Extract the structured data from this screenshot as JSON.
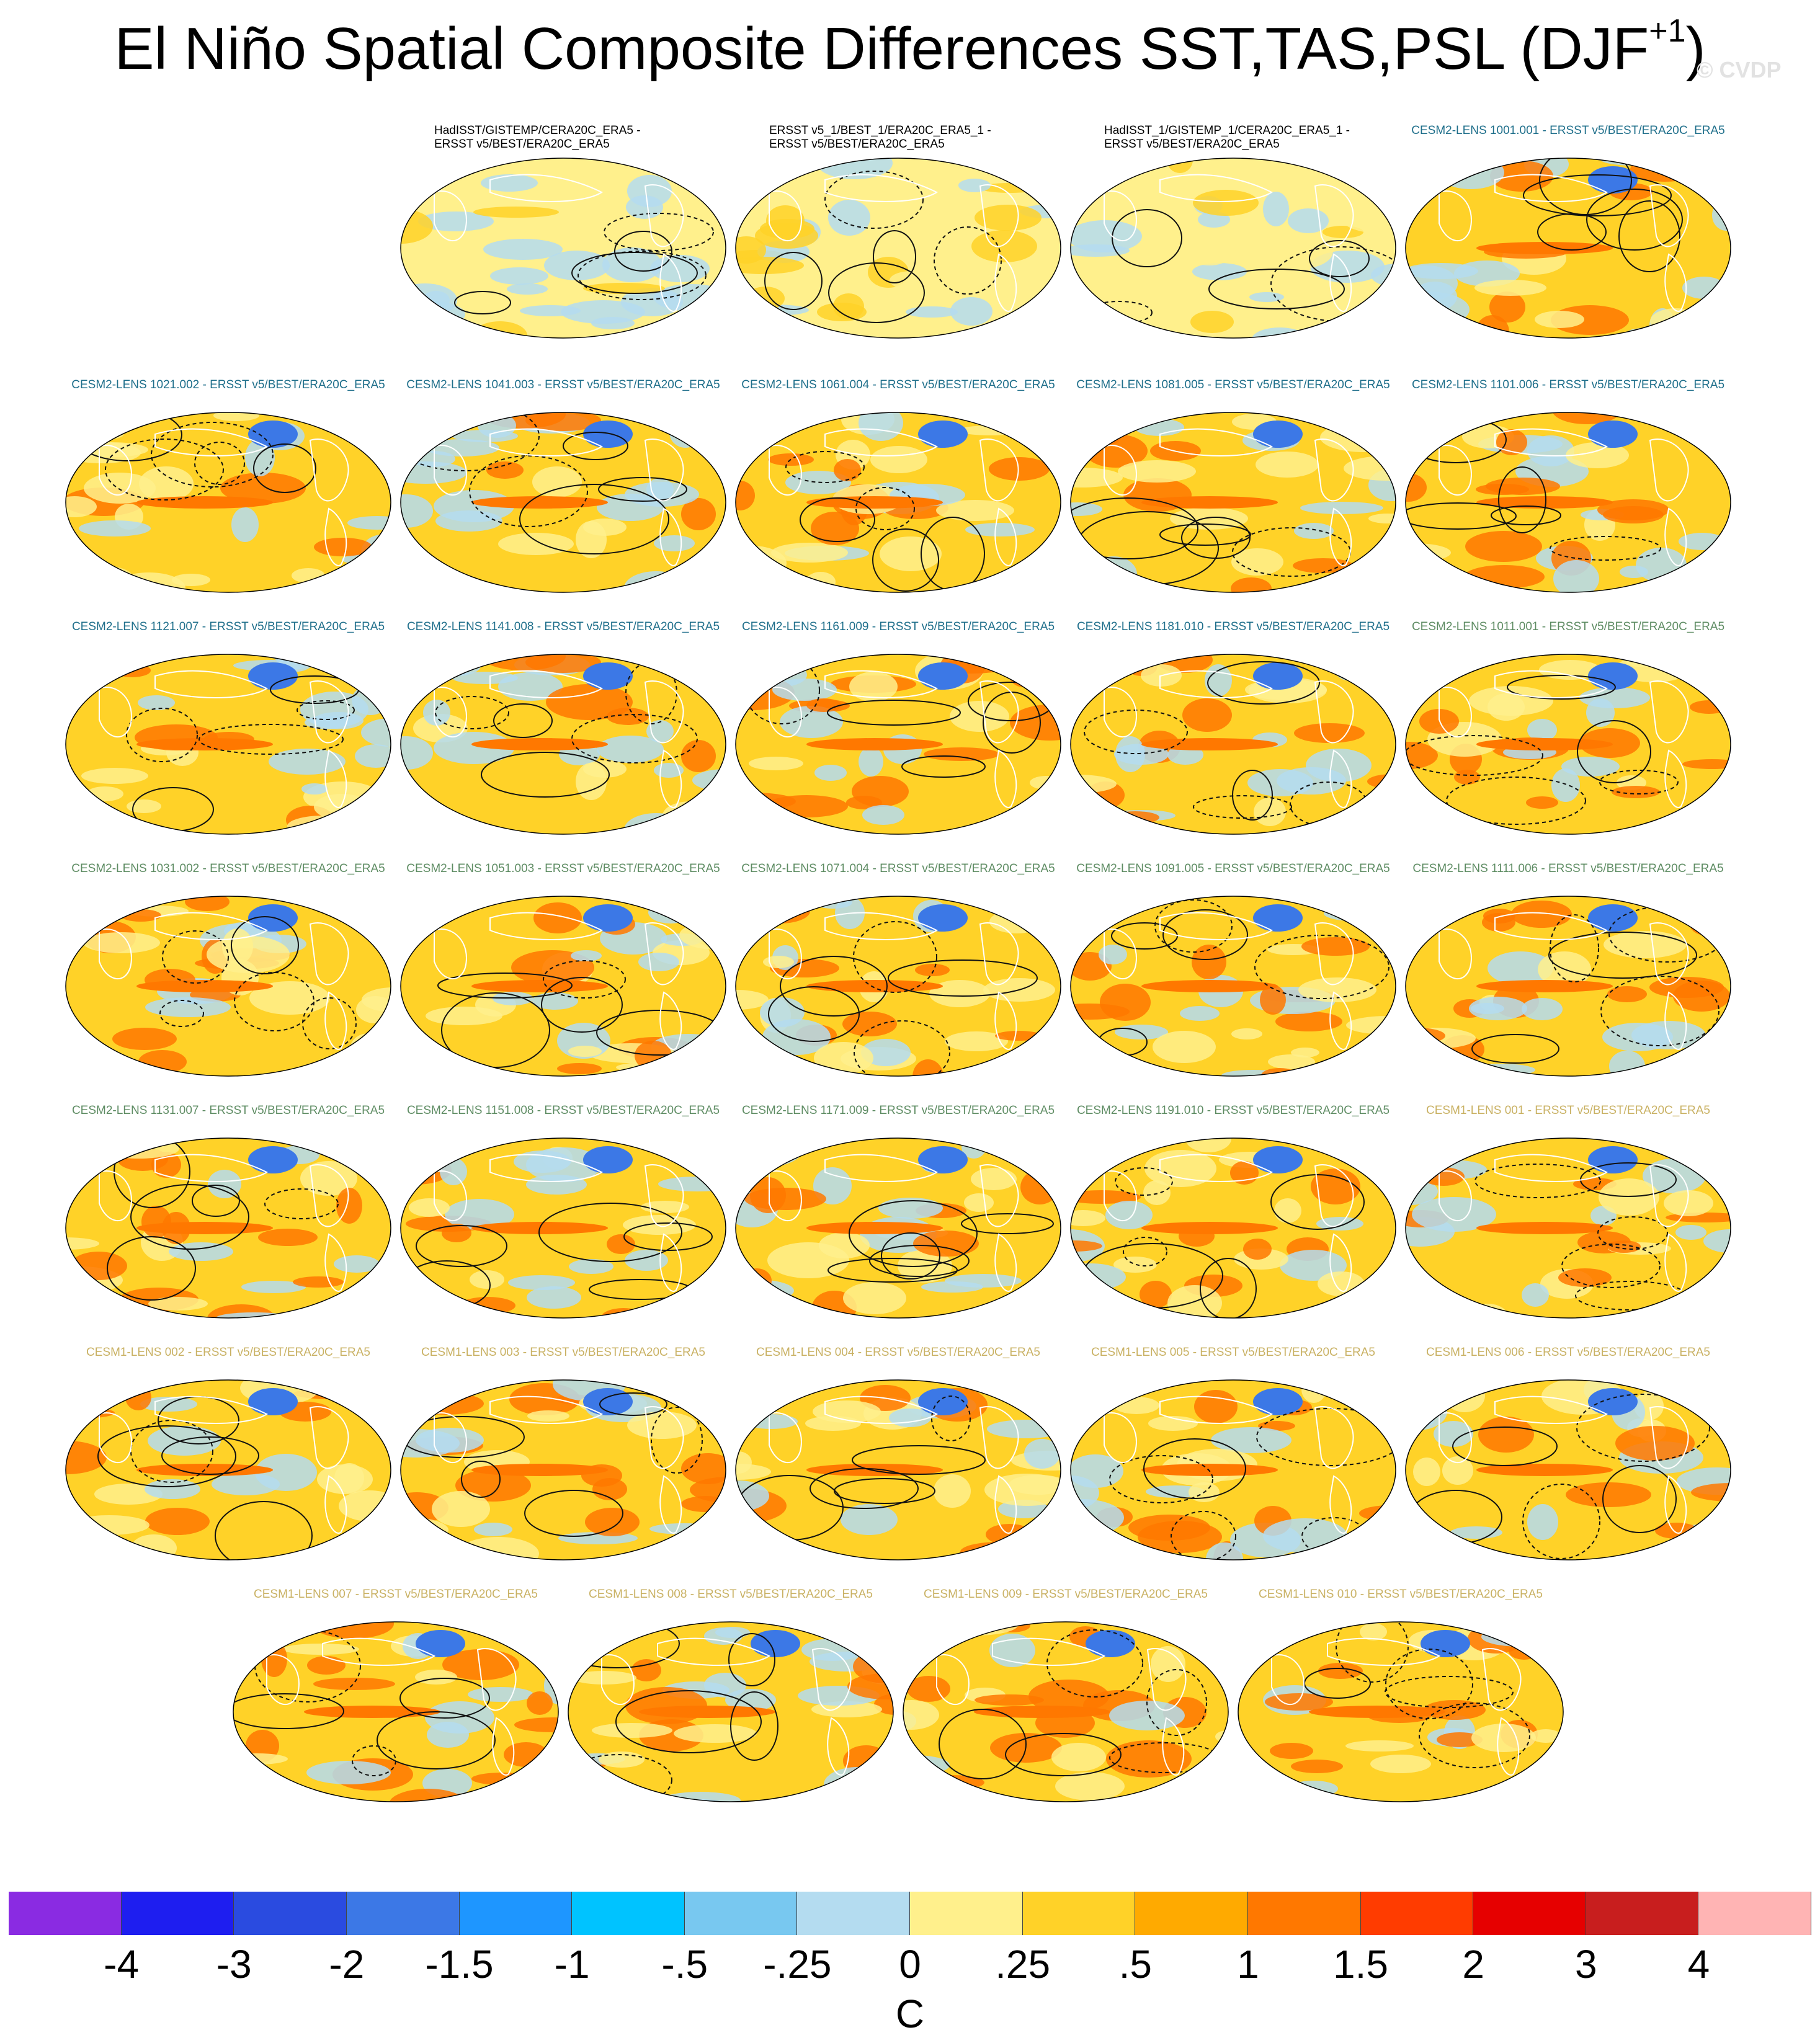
{
  "title": {
    "main": "El Niño Spatial Composite Differences SST,TAS,PSL (DJF",
    "superscript": "+1",
    "close": ")"
  },
  "watermark": "© CVDP",
  "label_colors": {
    "observations": "#000000",
    "cesm2_lens_a": "#1f6f8b",
    "cesm2_lens_b": "#5e8c63",
    "cesm1_lens": "#c9b163"
  },
  "panels": [
    {
      "label": "HadISST/GISTEMP/CERA20C_ERA5 -\nERSST v5/BEST/ERA20C_ERA5",
      "group": "observations"
    },
    {
      "label": "ERSST v5_1/BEST_1/ERA20C_ERA5_1 -\nERSST v5/BEST/ERA20C_ERA5",
      "group": "observations"
    },
    {
      "label": "HadISST_1/GISTEMP_1/CERA20C_ERA5_1 -\nERSST v5/BEST/ERA20C_ERA5",
      "group": "observations"
    },
    {
      "label": "CESM2-LENS 1001.001 - ERSST v5/BEST/ERA20C_ERA5",
      "group": "cesm2_lens_a"
    },
    {
      "label": "CESM2-LENS 1021.002 - ERSST v5/BEST/ERA20C_ERA5",
      "group": "cesm2_lens_a"
    },
    {
      "label": "CESM2-LENS 1041.003 - ERSST v5/BEST/ERA20C_ERA5",
      "group": "cesm2_lens_a"
    },
    {
      "label": "CESM2-LENS 1061.004 - ERSST v5/BEST/ERA20C_ERA5",
      "group": "cesm2_lens_a"
    },
    {
      "label": "CESM2-LENS 1081.005 - ERSST v5/BEST/ERA20C_ERA5",
      "group": "cesm2_lens_a"
    },
    {
      "label": "CESM2-LENS 1101.006 - ERSST v5/BEST/ERA20C_ERA5",
      "group": "cesm2_lens_a"
    },
    {
      "label": "CESM2-LENS 1121.007 - ERSST v5/BEST/ERA20C_ERA5",
      "group": "cesm2_lens_a"
    },
    {
      "label": "CESM2-LENS 1141.008 - ERSST v5/BEST/ERA20C_ERA5",
      "group": "cesm2_lens_a"
    },
    {
      "label": "CESM2-LENS 1161.009 - ERSST v5/BEST/ERA20C_ERA5",
      "group": "cesm2_lens_a"
    },
    {
      "label": "CESM2-LENS 1181.010 - ERSST v5/BEST/ERA20C_ERA5",
      "group": "cesm2_lens_a"
    },
    {
      "label": "CESM2-LENS 1011.001 - ERSST v5/BEST/ERA20C_ERA5",
      "group": "cesm2_lens_b"
    },
    {
      "label": "CESM2-LENS 1031.002 - ERSST v5/BEST/ERA20C_ERA5",
      "group": "cesm2_lens_b"
    },
    {
      "label": "CESM2-LENS 1051.003 - ERSST v5/BEST/ERA20C_ERA5",
      "group": "cesm2_lens_b"
    },
    {
      "label": "CESM2-LENS 1071.004 - ERSST v5/BEST/ERA20C_ERA5",
      "group": "cesm2_lens_b"
    },
    {
      "label": "CESM2-LENS 1091.005 - ERSST v5/BEST/ERA20C_ERA5",
      "group": "cesm2_lens_b"
    },
    {
      "label": "CESM2-LENS 1111.006 - ERSST v5/BEST/ERA20C_ERA5",
      "group": "cesm2_lens_b"
    },
    {
      "label": "CESM2-LENS 1131.007 - ERSST v5/BEST/ERA20C_ERA5",
      "group": "cesm2_lens_b"
    },
    {
      "label": "CESM2-LENS 1151.008 - ERSST v5/BEST/ERA20C_ERA5",
      "group": "cesm2_lens_b"
    },
    {
      "label": "CESM2-LENS 1171.009 - ERSST v5/BEST/ERA20C_ERA5",
      "group": "cesm2_lens_b"
    },
    {
      "label": "CESM2-LENS 1191.010 - ERSST v5/BEST/ERA20C_ERA5",
      "group": "cesm2_lens_b"
    },
    {
      "label": "CESM1-LENS 001 - ERSST v5/BEST/ERA20C_ERA5",
      "group": "cesm1_lens"
    },
    {
      "label": "CESM1-LENS 002 - ERSST v5/BEST/ERA20C_ERA5",
      "group": "cesm1_lens"
    },
    {
      "label": "CESM1-LENS 003 - ERSST v5/BEST/ERA20C_ERA5",
      "group": "cesm1_lens"
    },
    {
      "label": "CESM1-LENS 004 - ERSST v5/BEST/ERA20C_ERA5",
      "group": "cesm1_lens"
    },
    {
      "label": "CESM1-LENS 005 - ERSST v5/BEST/ERA20C_ERA5",
      "group": "cesm1_lens"
    },
    {
      "label": "CESM1-LENS 006 - ERSST v5/BEST/ERA20C_ERA5",
      "group": "cesm1_lens"
    },
    {
      "label": "CESM1-LENS 007 - ERSST v5/BEST/ERA20C_ERA5",
      "group": "cesm1_lens"
    },
    {
      "label": "CESM1-LENS 008 - ERSST v5/BEST/ERA20C_ERA5",
      "group": "cesm1_lens"
    },
    {
      "label": "CESM1-LENS 009 - ERSST v5/BEST/ERA20C_ERA5",
      "group": "cesm1_lens"
    },
    {
      "label": "CESM1-LENS 010 - ERSST v5/BEST/ERA20C_ERA5",
      "group": "cesm1_lens"
    }
  ],
  "colorbar": {
    "colors": [
      "#8a2be2",
      "#1e1ef0",
      "#2a4be0",
      "#3c78e6",
      "#1e96ff",
      "#00c3ff",
      "#78c8f0",
      "#b4dcf0",
      "#fff08c",
      "#ffd228",
      "#ffaa00",
      "#ff7800",
      "#ff3c00",
      "#e60000",
      "#c81e1e",
      "#ffb4b4"
    ],
    "ticks": [
      "-4",
      "-3",
      "-2",
      "-1.5",
      "-1",
      "-.5",
      "-.25",
      "0",
      ".25",
      ".5",
      "1",
      "1.5",
      "2",
      "3",
      "4"
    ],
    "units": "C"
  },
  "map_palette": {
    "ocean_warm": "#ffd228",
    "ocean_neutral": "#fff08c",
    "cool": "#b4dcf0",
    "cold": "#3c78e6",
    "hot": "#ff7800",
    "contour": "#111111",
    "coast": "#ffffff"
  }
}
